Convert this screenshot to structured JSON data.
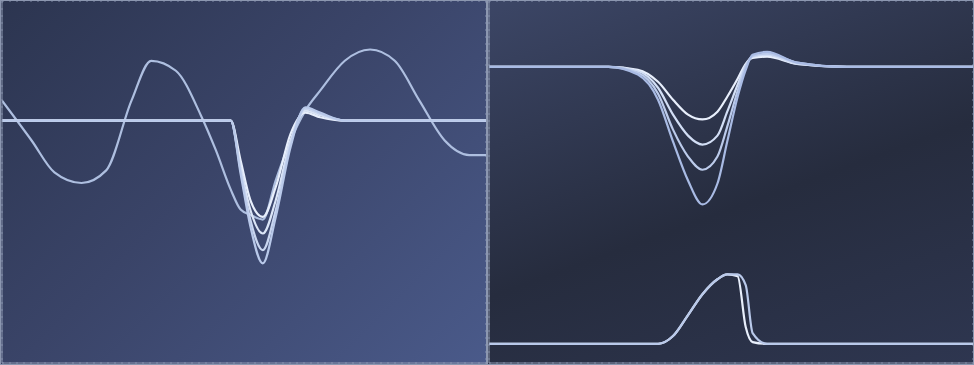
{
  "chart_data": [
    {
      "type": "line",
      "x": [
        -4.0,
        -3.52,
        -3.15,
        -2.71,
        -2.31,
        -1.9,
        -1.58,
        -1.18,
        -0.77,
        -0.53,
        -0.29,
        -0.13,
        0.03,
        0.23,
        0.44,
        0.68,
        0.92,
        1.16,
        1.56,
        1.97,
        2.37,
        2.77,
        3.18,
        3.58,
        3.85
      ],
      "xlim": [
        -4.0,
        3.85
      ],
      "ylim": [
        -2.65,
        2.8
      ],
      "xticks": [
        -4,
        -3,
        -2,
        -1,
        0,
        1,
        2,
        3
      ],
      "yticks": [
        -2,
        -1,
        0,
        1,
        2
      ],
      "grid": true,
      "tick_labels": false,
      "series": [
        {
          "color": "#aebfe0",
          "values": [
            1.3,
            0.7,
            0.22,
            0.06,
            0.25,
            1.3,
            1.9,
            1.75,
            1.07,
            0.55,
            -0.04,
            -0.34,
            -0.42,
            -0.49,
            0.1,
            0.7,
            1.15,
            1.45,
            1.9,
            2.07,
            1.9,
            1.3,
            0.7,
            0.48,
            0.48
          ]
        },
        {
          "color": "#e8effc",
          "values": [
            1.0,
            1.0,
            1.0,
            1.0,
            1.0,
            1.0,
            1.0,
            1.0,
            1.0,
            1.0,
            1.0,
            0.4,
            -0.2,
            -0.45,
            0.0,
            0.8,
            1.12,
            1.05,
            1.0,
            1.0,
            1.0,
            1.0,
            1.0,
            1.0,
            1.0
          ]
        },
        {
          "color": "#dbe5f7",
          "values": [
            1.0,
            1.0,
            1.0,
            1.0,
            1.0,
            1.0,
            1.0,
            1.0,
            1.0,
            1.0,
            1.0,
            0.3,
            -0.35,
            -0.7,
            -0.2,
            0.7,
            1.15,
            1.08,
            1.0,
            1.0,
            1.0,
            1.0,
            1.0,
            1.0,
            1.0
          ]
        },
        {
          "color": "#c9d6f0",
          "values": [
            1.0,
            1.0,
            1.0,
            1.0,
            1.0,
            1.0,
            1.0,
            1.0,
            1.0,
            1.0,
            1.0,
            0.25,
            -0.5,
            -0.95,
            -0.35,
            0.65,
            1.18,
            1.1,
            1.0,
            1.0,
            1.0,
            1.0,
            1.0,
            1.0,
            1.0
          ]
        },
        {
          "color": "#b9c9ea",
          "values": [
            1.0,
            1.0,
            1.0,
            1.0,
            1.0,
            1.0,
            1.0,
            1.0,
            1.0,
            1.0,
            1.0,
            0.2,
            -0.6,
            -1.15,
            -0.45,
            0.6,
            1.2,
            1.12,
            1.0,
            1.0,
            1.0,
            1.0,
            1.0,
            1.0,
            1.0
          ]
        }
      ]
    },
    {
      "type": "line",
      "x": [
        -3.79,
        -2.76,
        -1.72,
        -1.21,
        -0.86,
        -0.6,
        -0.34,
        -0.09,
        0.17,
        0.34,
        0.52,
        0.66,
        0.78,
        1.03,
        1.55,
        2.41,
        3.45,
        4.6
      ],
      "xlim": [
        -3.79,
        4.6
      ],
      "ylim": [
        -2.9,
        3.15
      ],
      "xticks": [
        -3,
        -2,
        -1,
        0,
        1,
        2,
        3,
        4
      ],
      "yticks": [
        -2,
        -1,
        0,
        1,
        2,
        3
      ],
      "grid": true,
      "tick_labels": false,
      "series": [
        {
          "color": "#e8effc",
          "values": [
            2.05,
            2.05,
            2.05,
            2.0,
            1.8,
            1.5,
            1.25,
            1.17,
            1.3,
            1.55,
            1.85,
            2.1,
            2.2,
            2.22,
            2.1,
            2.05,
            2.05,
            2.05
          ]
        },
        {
          "color": "#d2def5",
          "values": [
            2.05,
            2.05,
            2.05,
            1.98,
            1.7,
            1.25,
            0.9,
            0.75,
            0.9,
            1.3,
            1.75,
            2.08,
            2.22,
            2.25,
            2.1,
            2.05,
            2.05,
            2.05
          ]
        },
        {
          "color": "#bccbeb",
          "values": [
            2.05,
            2.05,
            2.05,
            1.95,
            1.6,
            1.0,
            0.55,
            0.33,
            0.55,
            1.05,
            1.65,
            2.05,
            2.23,
            2.27,
            2.12,
            2.05,
            2.05,
            2.05
          ]
        },
        {
          "color": "#a9bbe4",
          "values": [
            2.05,
            2.05,
            2.05,
            1.92,
            1.5,
            0.8,
            0.15,
            -0.25,
            0.1,
            0.8,
            1.55,
            2.0,
            2.25,
            2.3,
            2.12,
            2.05,
            2.05,
            2.05
          ]
        },
        {
          "color": "#e8effc",
          "values": [
            -2.58,
            -2.58,
            -2.58,
            -2.58,
            -2.58,
            -2.45,
            -2.1,
            -1.75,
            -1.5,
            -1.42,
            -1.45,
            -2.3,
            -2.55,
            -2.58,
            -2.58,
            -2.58,
            -2.58,
            -2.58
          ]
        },
        {
          "color": "#b9c9ea",
          "values": [
            -2.58,
            -2.58,
            -2.58,
            -2.58,
            -2.58,
            -2.45,
            -2.1,
            -1.75,
            -1.5,
            -1.42,
            -1.42,
            -1.6,
            -2.4,
            -2.58,
            -2.58,
            -2.58,
            -2.58,
            -2.58
          ]
        }
      ]
    }
  ]
}
